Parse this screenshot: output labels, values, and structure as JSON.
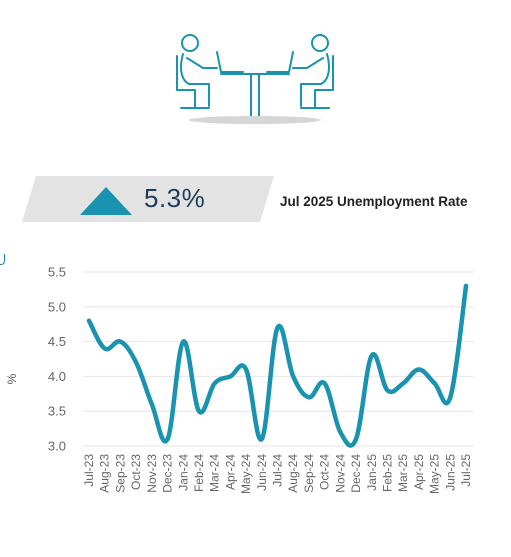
{
  "summary": {
    "rate_value": "5.3%",
    "rate_label": "Jul 2025 Unemployment Rate",
    "trend_icon": "up-triangle-icon",
    "accent_color": "#1a93b0"
  },
  "illustration": {
    "icon": "two-people-at-desk-icon"
  },
  "chart_data": {
    "type": "line",
    "ylabel": "%",
    "ylim": [
      3.0,
      5.5
    ],
    "yticks": [
      "5.5",
      "5.0",
      "4.5",
      "4.0",
      "3.5",
      "3.0"
    ],
    "grid": true,
    "color": "#1a93b0",
    "categories": [
      "Jul-23",
      "Aug-23",
      "Sep-23",
      "Oct-23",
      "Nov-23",
      "Dec-23",
      "Jan-24",
      "Feb-24",
      "Mar-24",
      "Apr-24",
      "May-24",
      "Jun-24",
      "Jul-24",
      "Aug-24",
      "Sep-24",
      "Oct-24",
      "Nov-24",
      "Dec-24",
      "Jan-25",
      "Feb-25",
      "Mar-25",
      "Apr-25",
      "May-25",
      "Jun-25",
      "Jul-25"
    ],
    "values": [
      4.8,
      4.4,
      4.5,
      4.2,
      3.6,
      3.1,
      4.5,
      3.5,
      3.9,
      4.0,
      4.1,
      3.1,
      4.7,
      4.0,
      3.7,
      3.9,
      3.2,
      3.1,
      4.3,
      3.8,
      3.9,
      4.1,
      3.9,
      3.7,
      5.3
    ]
  }
}
